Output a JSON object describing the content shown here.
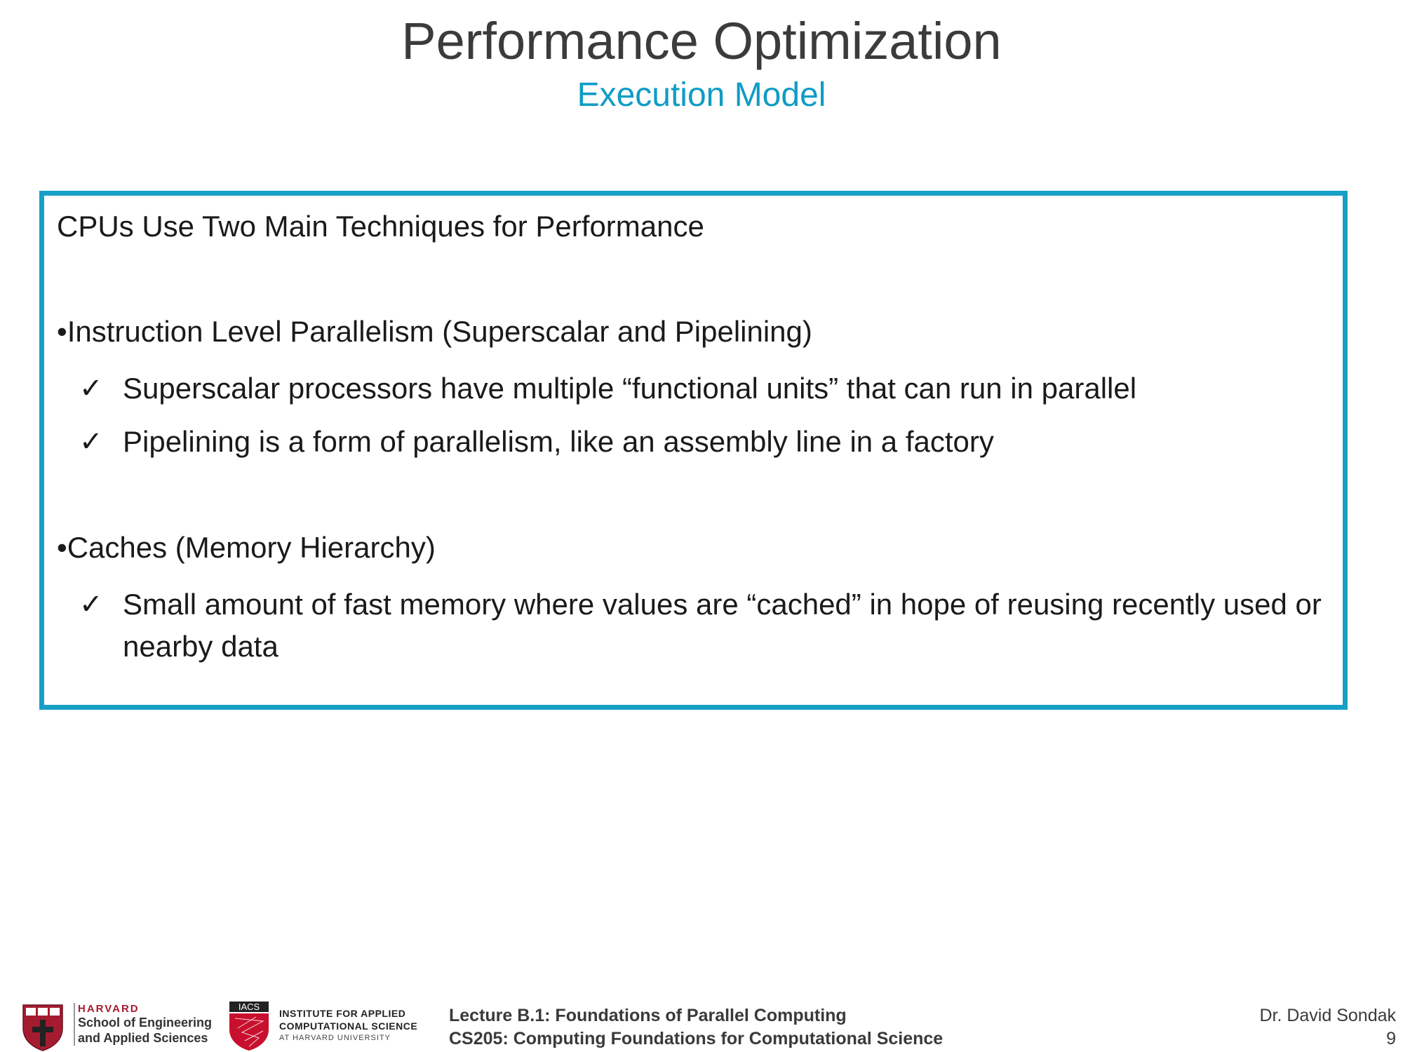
{
  "slide": {
    "title": "Performance Optimization",
    "subtitle": "Execution Model"
  },
  "content": {
    "heading": "CPUs Use Two Main Techniques for Performance",
    "bullets": [
      {
        "text": "•Instruction Level Parallelism (Superscalar and Pipelining)",
        "subitems": [
          "Superscalar processors have multiple “functional units” that can run in parallel",
          "Pipelining is a form of parallelism, like an assembly line in a factory"
        ]
      },
      {
        "text": "•Caches (Memory Hierarchy)",
        "subitems": [
          "Small amount of fast memory where values are “cached” in hope of reusing recently used or nearby data"
        ]
      }
    ],
    "check_glyph": "✓"
  },
  "footer": {
    "harvard_name": "HARVARD",
    "harvard_school_line1": "School of Engineering",
    "harvard_school_line2": "and Applied Sciences",
    "iacs_label": "IACS",
    "iacs_line1": "INSTITUTE FOR APPLIED",
    "iacs_line2": "COMPUTATIONAL SCIENCE",
    "iacs_line3": "AT HARVARD UNIVERSITY",
    "lecture_line1": "Lecture B.1: Foundations of Parallel Computing",
    "lecture_line2": "CS205: Computing Foundations for Computational Science",
    "author": "Dr. David Sondak",
    "page_number": "9"
  },
  "colors": {
    "accent": "#16a0c6",
    "title": "#3b3b3b",
    "harvard_crimson": "#a51c30",
    "iacs_red": "#c8102e"
  }
}
